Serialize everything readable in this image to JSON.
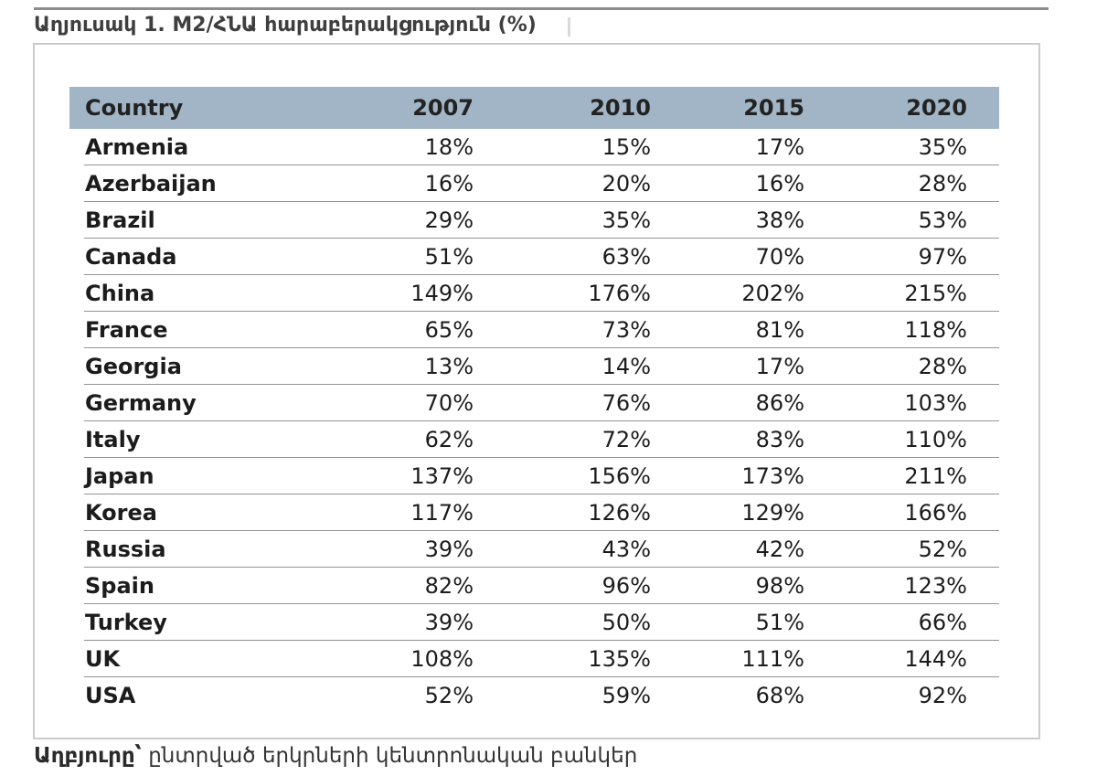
{
  "title": "Աղյուսակ 1. M2/ՀՆԱ հարաբերակցություն (%)",
  "table": {
    "columns": [
      "Country",
      "2007",
      "2010",
      "2015",
      "2020"
    ],
    "rows": [
      {
        "country": "Armenia",
        "values": [
          "18%",
          "15%",
          "17%",
          "35%"
        ]
      },
      {
        "country": "Azerbaijan",
        "values": [
          "16%",
          "20%",
          "16%",
          "28%"
        ]
      },
      {
        "country": "Brazil",
        "values": [
          "29%",
          "35%",
          "38%",
          "53%"
        ]
      },
      {
        "country": "Canada",
        "values": [
          "51%",
          "63%",
          "70%",
          "97%"
        ]
      },
      {
        "country": "China",
        "values": [
          "149%",
          "176%",
          "202%",
          "215%"
        ]
      },
      {
        "country": "France",
        "values": [
          "65%",
          "73%",
          "81%",
          "118%"
        ]
      },
      {
        "country": "Georgia",
        "values": [
          "13%",
          "14%",
          "17%",
          "28%"
        ]
      },
      {
        "country": "Germany",
        "values": [
          "70%",
          "76%",
          "86%",
          "103%"
        ]
      },
      {
        "country": "Italy",
        "values": [
          "62%",
          "72%",
          "83%",
          "110%"
        ]
      },
      {
        "country": "Japan",
        "values": [
          "137%",
          "156%",
          "173%",
          "211%"
        ]
      },
      {
        "country": "Korea",
        "values": [
          "117%",
          "126%",
          "129%",
          "166%"
        ]
      },
      {
        "country": "Russia",
        "values": [
          "39%",
          "43%",
          "42%",
          "52%"
        ]
      },
      {
        "country": "Spain",
        "values": [
          "82%",
          "96%",
          "98%",
          "123%"
        ]
      },
      {
        "country": "Turkey",
        "values": [
          "39%",
          "50%",
          "51%",
          "66%"
        ]
      },
      {
        "country": "UK",
        "values": [
          "108%",
          "135%",
          "111%",
          "144%"
        ]
      },
      {
        "country": "USA",
        "values": [
          "52%",
          "59%",
          "68%",
          "92%"
        ]
      }
    ]
  },
  "source": {
    "label": "Աղբյուրը՝",
    "text": " ընտրված երկրների կենտրոնական բանկեր"
  },
  "colors": {
    "header_bg": "#a1b5c6",
    "row_separator": "#939393",
    "panel_border": "#cbcbcb",
    "top_rule": "#8c8c8c",
    "title_text": "#3f3f3f",
    "body_text": "#1c1c1c"
  }
}
